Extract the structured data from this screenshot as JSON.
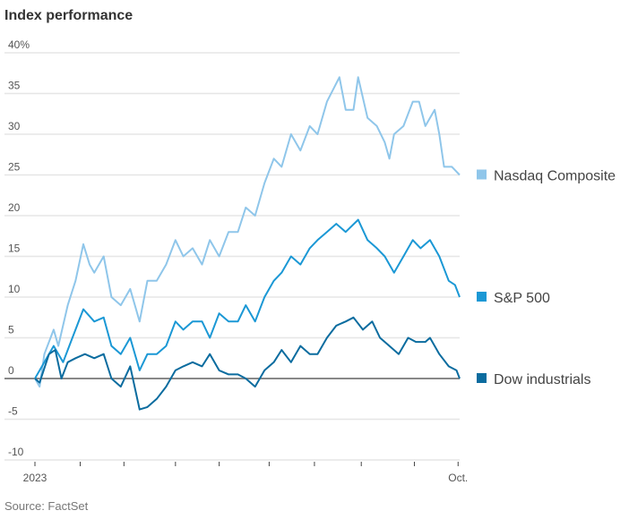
{
  "chart_data": {
    "type": "line",
    "title": "Index performance",
    "source": "Source: FactSet",
    "xlabel": "",
    "ylabel": "",
    "x_unit": "day of 2023",
    "xlim": [
      0,
      272
    ],
    "ylim": [
      -10,
      40
    ],
    "grid": true,
    "y_ticks": [
      {
        "value": 40,
        "label": "40%"
      },
      {
        "value": 35,
        "label": "35"
      },
      {
        "value": 30,
        "label": "30"
      },
      {
        "value": 25,
        "label": "25"
      },
      {
        "value": 20,
        "label": "20"
      },
      {
        "value": 15,
        "label": "15"
      },
      {
        "value": 10,
        "label": "10"
      },
      {
        "value": 5,
        "label": "5"
      },
      {
        "value": 0,
        "label": "0"
      },
      {
        "value": -5,
        "label": "-5"
      },
      {
        "value": -10,
        "label": "-10"
      }
    ],
    "x_ticks": [
      {
        "value": 0,
        "label": "2023"
      },
      {
        "value": 29,
        "label": ""
      },
      {
        "value": 57,
        "label": ""
      },
      {
        "value": 90,
        "label": ""
      },
      {
        "value": 118,
        "label": ""
      },
      {
        "value": 150,
        "label": ""
      },
      {
        "value": 179,
        "label": ""
      },
      {
        "value": 209,
        "label": ""
      },
      {
        "value": 243,
        "label": ""
      },
      {
        "value": 271,
        "label": "Oct."
      }
    ],
    "legend_placement": "right, at line ends",
    "series": [
      {
        "name": "Nasdaq Composite",
        "color": "#8fc6ea",
        "points": [
          [
            0,
            0
          ],
          [
            3,
            -1
          ],
          [
            6,
            3
          ],
          [
            12,
            6
          ],
          [
            15,
            4
          ],
          [
            21,
            9
          ],
          [
            26,
            12
          ],
          [
            31,
            16.5
          ],
          [
            35,
            14
          ],
          [
            38,
            13
          ],
          [
            44,
            15
          ],
          [
            49,
            10
          ],
          [
            55,
            9
          ],
          [
            61,
            11
          ],
          [
            67,
            7
          ],
          [
            72,
            12
          ],
          [
            78,
            12
          ],
          [
            84,
            14
          ],
          [
            90,
            17
          ],
          [
            95,
            15
          ],
          [
            101,
            16
          ],
          [
            107,
            14
          ],
          [
            112,
            17
          ],
          [
            118,
            15
          ],
          [
            124,
            18
          ],
          [
            130,
            18
          ],
          [
            135,
            21
          ],
          [
            141,
            20
          ],
          [
            147,
            24
          ],
          [
            153,
            27
          ],
          [
            158,
            26
          ],
          [
            164,
            30
          ],
          [
            170,
            28
          ],
          [
            176,
            31
          ],
          [
            181,
            30
          ],
          [
            187,
            34
          ],
          [
            195,
            37
          ],
          [
            199,
            33
          ],
          [
            204,
            33
          ],
          [
            207,
            37
          ],
          [
            213,
            32
          ],
          [
            219,
            31
          ],
          [
            224,
            29
          ],
          [
            227,
            27
          ],
          [
            230,
            30
          ],
          [
            236,
            31
          ],
          [
            242,
            34
          ],
          [
            246,
            34
          ],
          [
            250,
            31
          ],
          [
            256,
            33
          ],
          [
            259,
            30
          ],
          [
            262,
            26
          ],
          [
            267,
            26
          ],
          [
            272,
            25
          ]
        ]
      },
      {
        "name": "S&P 500",
        "color": "#1b98d5",
        "points": [
          [
            0,
            0
          ],
          [
            6,
            2
          ],
          [
            12,
            4
          ],
          [
            18,
            2
          ],
          [
            24,
            5
          ],
          [
            31,
            8.5
          ],
          [
            38,
            7
          ],
          [
            44,
            7.5
          ],
          [
            49,
            4
          ],
          [
            55,
            3
          ],
          [
            61,
            5
          ],
          [
            67,
            1
          ],
          [
            72,
            3
          ],
          [
            78,
            3
          ],
          [
            84,
            4
          ],
          [
            90,
            7
          ],
          [
            95,
            6
          ],
          [
            101,
            7
          ],
          [
            107,
            7
          ],
          [
            112,
            5
          ],
          [
            118,
            8
          ],
          [
            124,
            7
          ],
          [
            130,
            7
          ],
          [
            135,
            9
          ],
          [
            141,
            7
          ],
          [
            147,
            10
          ],
          [
            153,
            12
          ],
          [
            158,
            13
          ],
          [
            164,
            15
          ],
          [
            170,
            14
          ],
          [
            176,
            16
          ],
          [
            181,
            17
          ],
          [
            187,
            18
          ],
          [
            193,
            19
          ],
          [
            199,
            18
          ],
          [
            207,
            19.5
          ],
          [
            213,
            17
          ],
          [
            219,
            16
          ],
          [
            224,
            15
          ],
          [
            230,
            13
          ],
          [
            236,
            15
          ],
          [
            242,
            17
          ],
          [
            247,
            16
          ],
          [
            253,
            17
          ],
          [
            259,
            15
          ],
          [
            265,
            12
          ],
          [
            269,
            11.5
          ],
          [
            272,
            10
          ]
        ]
      },
      {
        "name": "Dow industrials",
        "color": "#0b6c9f",
        "points": [
          [
            0,
            0
          ],
          [
            3,
            -0.5
          ],
          [
            9,
            3
          ],
          [
            13,
            3.5
          ],
          [
            17,
            0
          ],
          [
            21,
            2
          ],
          [
            26,
            2.5
          ],
          [
            32,
            3
          ],
          [
            38,
            2.5
          ],
          [
            44,
            3
          ],
          [
            49,
            0
          ],
          [
            55,
            -1
          ],
          [
            61,
            1.5
          ],
          [
            67,
            -3.8
          ],
          [
            72,
            -3.5
          ],
          [
            78,
            -2.5
          ],
          [
            84,
            -1
          ],
          [
            90,
            1
          ],
          [
            95,
            1.5
          ],
          [
            101,
            2
          ],
          [
            107,
            1.5
          ],
          [
            112,
            3
          ],
          [
            118,
            1
          ],
          [
            124,
            0.5
          ],
          [
            130,
            0.5
          ],
          [
            135,
            0
          ],
          [
            141,
            -1
          ],
          [
            147,
            1
          ],
          [
            153,
            2
          ],
          [
            158,
            3.5
          ],
          [
            164,
            2
          ],
          [
            170,
            4
          ],
          [
            176,
            3
          ],
          [
            181,
            3
          ],
          [
            187,
            5
          ],
          [
            193,
            6.5
          ],
          [
            199,
            7
          ],
          [
            204,
            7.5
          ],
          [
            210,
            6
          ],
          [
            216,
            7
          ],
          [
            221,
            5
          ],
          [
            227,
            4
          ],
          [
            233,
            3
          ],
          [
            239,
            5
          ],
          [
            244,
            4.5
          ],
          [
            250,
            4.5
          ],
          [
            253,
            5
          ],
          [
            259,
            3
          ],
          [
            265,
            1.5
          ],
          [
            270,
            1
          ],
          [
            272,
            0
          ]
        ]
      }
    ]
  }
}
